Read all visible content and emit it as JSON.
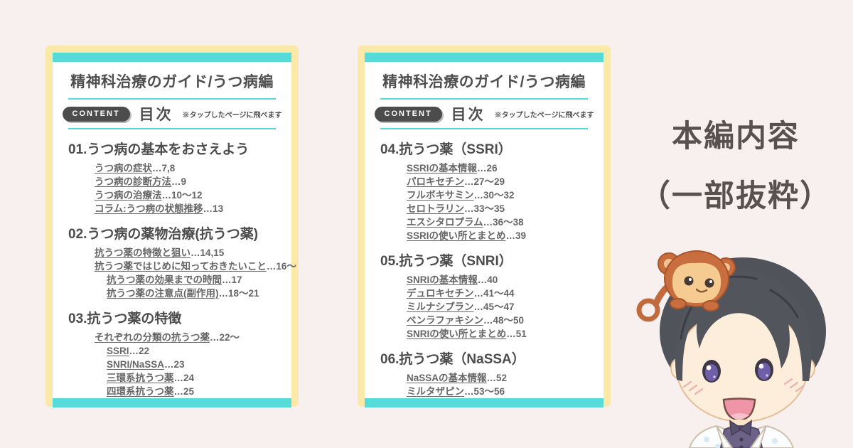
{
  "colors": {
    "background": "#f7f0ee",
    "card_frame_yellow": "#fbe9aa",
    "accent_teal": "#57dbd8",
    "badge_dark": "#4c4c4c",
    "heading_text": "#4c4c4c",
    "item_text": "#666666",
    "side_title_text": "#57514f"
  },
  "side_title": {
    "line1": "本編内容",
    "line2": "（一部抜粋）"
  },
  "cards": [
    {
      "title": "精神科治療のガイド/うつ病編",
      "badge": "CONTENT",
      "toc_label": "目次",
      "note": "※タップしたページに飛べます",
      "sections": [
        {
          "heading": "01.うつ病の基本をおさえよう",
          "items": [
            {
              "label": "うつ病の症状",
              "pages": "…7,8",
              "level": 1
            },
            {
              "label": "うつ病の診断方法",
              "pages": "…9",
              "level": 1
            },
            {
              "label": "うつ病の治療法",
              "pages": "…10〜12",
              "level": 1
            },
            {
              "label": "コラム:うつ病の状態推移",
              "pages": "…13",
              "level": 1
            }
          ]
        },
        {
          "heading": "02.うつ病の薬物治療(抗うつ薬)",
          "items": [
            {
              "label": "抗うつ薬の特徴と狙い",
              "pages": "…14,15",
              "level": 1
            },
            {
              "label": "抗うつ薬ではじめに知っておきたいこと",
              "pages": "…16〜",
              "level": 1
            },
            {
              "label": "抗うつ薬の効果までの時間",
              "pages": "…17",
              "level": 2
            },
            {
              "label": "抗うつ薬の注意点(副作用)",
              "pages": "…18〜21",
              "level": 2
            }
          ]
        },
        {
          "heading": "03.抗うつ薬の特徴",
          "items": [
            {
              "label": "それぞれの分類の抗うつ薬",
              "pages": "…22〜",
              "level": 1
            },
            {
              "label": "SSRI",
              "pages": "…22",
              "level": 2
            },
            {
              "label": "SNRI/NaSSA",
              "pages": "…23",
              "level": 2
            },
            {
              "label": "三環系抗うつ薬",
              "pages": "…24",
              "level": 2
            },
            {
              "label": "四環系抗うつ薬",
              "pages": "…25",
              "level": 2
            }
          ]
        }
      ]
    },
    {
      "title": "精神科治療のガイド/うつ病編",
      "badge": "CONTENT",
      "toc_label": "目次",
      "note": "※タップしたページに飛べます",
      "sections": [
        {
          "heading": "04.抗うつ薬（SSRI）",
          "items": [
            {
              "label": "SSRIの基本情報",
              "pages": "…26",
              "level": 1
            },
            {
              "label": "パロキセチン",
              "pages": "…27〜29",
              "level": 1
            },
            {
              "label": "フルボキサミン",
              "pages": "…30〜32",
              "level": 1
            },
            {
              "label": "セロトラリン",
              "pages": "…33〜35",
              "level": 1
            },
            {
              "label": "エスシタロプラム",
              "pages": "…36〜38",
              "level": 1
            },
            {
              "label": "SSRIの使い所とまとめ",
              "pages": "…39",
              "level": 1
            }
          ]
        },
        {
          "heading": "05.抗うつ薬（SNRI）",
          "items": [
            {
              "label": "SNRIの基本情報",
              "pages": "…40",
              "level": 1
            },
            {
              "label": "デュロキセチン",
              "pages": "…41〜44",
              "level": 1
            },
            {
              "label": "ミルナシプラン",
              "pages": "…45〜47",
              "level": 1
            },
            {
              "label": "ベンラファキシン",
              "pages": "…48〜50",
              "level": 1
            },
            {
              "label": "SNRIの使い所とまとめ",
              "pages": "…51",
              "level": 1
            }
          ]
        },
        {
          "heading": "06.抗うつ薬（NaSSA）",
          "items": [
            {
              "label": "NaSSAの基本情報",
              "pages": "…52",
              "level": 1
            },
            {
              "label": "ミルタザピン",
              "pages": "…53〜56",
              "level": 1
            }
          ]
        }
      ]
    }
  ]
}
